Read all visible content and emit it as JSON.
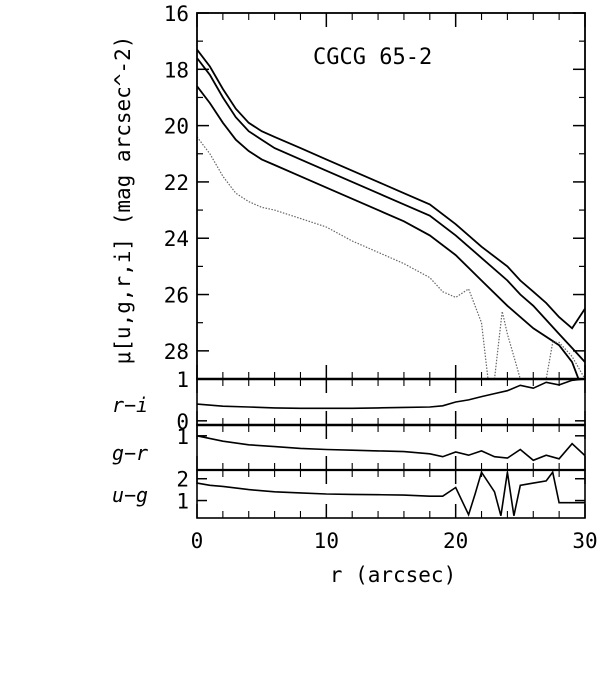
{
  "chart_data": [
    {
      "type": "line",
      "panel": "surface-brightness",
      "title": "CGCG 65-2",
      "xlabel": "r (arcsec)",
      "ylabel": "μ[u,g,r,i] (mag arcsec^-2)",
      "xlim": [
        0,
        30
      ],
      "ylim": [
        29.0,
        16.0
      ],
      "y_inverted": true,
      "grid": false,
      "yticks": [
        "16",
        "18",
        "20",
        "22",
        "24",
        "26",
        "28"
      ],
      "xticks": [
        "0",
        "10",
        "20",
        "30"
      ],
      "series": [
        {
          "style": "solid",
          "x": [
            0,
            1,
            2,
            3,
            4,
            5,
            6,
            8,
            10,
            12,
            14,
            16,
            18,
            20,
            22,
            24,
            25,
            26,
            27,
            28,
            29,
            30
          ],
          "y": [
            17.3,
            17.9,
            18.7,
            19.4,
            19.9,
            20.2,
            20.4,
            20.8,
            21.2,
            21.6,
            22.0,
            22.4,
            22.8,
            23.5,
            24.3,
            25.0,
            25.5,
            25.9,
            26.3,
            26.8,
            27.2,
            26.5
          ]
        },
        {
          "style": "solid",
          "x": [
            0,
            1,
            2,
            3,
            4,
            5,
            6,
            8,
            10,
            12,
            14,
            16,
            18,
            20,
            22,
            24,
            25,
            26,
            27,
            28,
            29,
            30
          ],
          "y": [
            17.6,
            18.2,
            19.0,
            19.7,
            20.2,
            20.5,
            20.8,
            21.2,
            21.6,
            22.0,
            22.4,
            22.8,
            23.2,
            23.9,
            24.7,
            25.5,
            26.0,
            26.4,
            26.9,
            27.4,
            27.9,
            28.4
          ]
        },
        {
          "style": "solid",
          "x": [
            0,
            1,
            2,
            3,
            4,
            5,
            6,
            8,
            10,
            12,
            14,
            16,
            18,
            20,
            22,
            24,
            26,
            28,
            29,
            29.5,
            30
          ],
          "y": [
            18.6,
            19.2,
            19.9,
            20.5,
            20.9,
            21.2,
            21.4,
            21.8,
            22.2,
            22.6,
            23.0,
            23.4,
            23.9,
            24.6,
            25.5,
            26.4,
            27.2,
            27.8,
            28.4,
            29.0,
            29.2
          ]
        },
        {
          "style": "dotted",
          "x": [
            0,
            1,
            2,
            3,
            4,
            5,
            6,
            8,
            10,
            12,
            14,
            16,
            18,
            19,
            20,
            21,
            22,
            22.5,
            23,
            23.6,
            24,
            24.5,
            25,
            26,
            27,
            27.5,
            28,
            29,
            30
          ],
          "y": [
            20.4,
            21.0,
            21.8,
            22.4,
            22.7,
            22.9,
            23.0,
            23.3,
            23.6,
            24.1,
            24.5,
            24.9,
            25.4,
            25.9,
            26.1,
            25.8,
            27.0,
            29.2,
            29.2,
            26.6,
            27.4,
            28.2,
            29.2,
            29.2,
            29.2,
            27.7,
            27.7,
            28.2,
            29.2
          ]
        }
      ]
    },
    {
      "type": "line",
      "panel": "r-i",
      "ylabel": "r−i",
      "ylim": [
        -0.1,
        1.0
      ],
      "yticks": [
        "1",
        "0"
      ],
      "x": [
        0,
        2,
        4,
        6,
        8,
        10,
        12,
        14,
        16,
        18,
        19,
        20,
        21,
        22,
        23,
        24,
        25,
        26,
        27,
        28,
        29,
        30
      ],
      "values": [
        0.4,
        0.35,
        0.33,
        0.31,
        0.3,
        0.3,
        0.3,
        0.31,
        0.32,
        0.33,
        0.36,
        0.45,
        0.5,
        0.58,
        0.65,
        0.72,
        0.85,
        0.78,
        0.92,
        0.86,
        0.97,
        1.0
      ]
    },
    {
      "type": "line",
      "panel": "g-r",
      "ylabel": "g−r",
      "ylim": [
        0.05,
        1.3
      ],
      "yticks": [
        "1"
      ],
      "x": [
        0,
        2,
        4,
        6,
        8,
        10,
        12,
        14,
        16,
        18,
        19,
        20,
        21,
        22,
        23,
        24,
        25,
        26,
        27,
        28,
        29,
        30
      ],
      "values": [
        1.0,
        0.85,
        0.75,
        0.7,
        0.65,
        0.62,
        0.6,
        0.58,
        0.56,
        0.5,
        0.42,
        0.55,
        0.46,
        0.58,
        0.42,
        0.38,
        0.62,
        0.32,
        0.46,
        0.36,
        0.78,
        0.45
      ]
    },
    {
      "type": "line",
      "panel": "u-g",
      "ylabel": "u−g",
      "ylim": [
        0.2,
        2.4
      ],
      "yticks": [
        "2",
        "1"
      ],
      "x": [
        0,
        1,
        2,
        4,
        6,
        8,
        10,
        12,
        14,
        16,
        18,
        19,
        20,
        21,
        21.5,
        22,
        23,
        23.5,
        24,
        24.5,
        25,
        26,
        27,
        27.5,
        28,
        29,
        30
      ],
      "values": [
        1.8,
        1.7,
        1.65,
        1.5,
        1.4,
        1.35,
        1.3,
        1.28,
        1.27,
        1.25,
        1.2,
        1.2,
        1.6,
        0.35,
        1.3,
        2.3,
        1.4,
        0.3,
        2.3,
        0.3,
        1.7,
        1.8,
        1.9,
        2.3,
        0.9,
        0.9,
        0.9
      ]
    }
  ]
}
